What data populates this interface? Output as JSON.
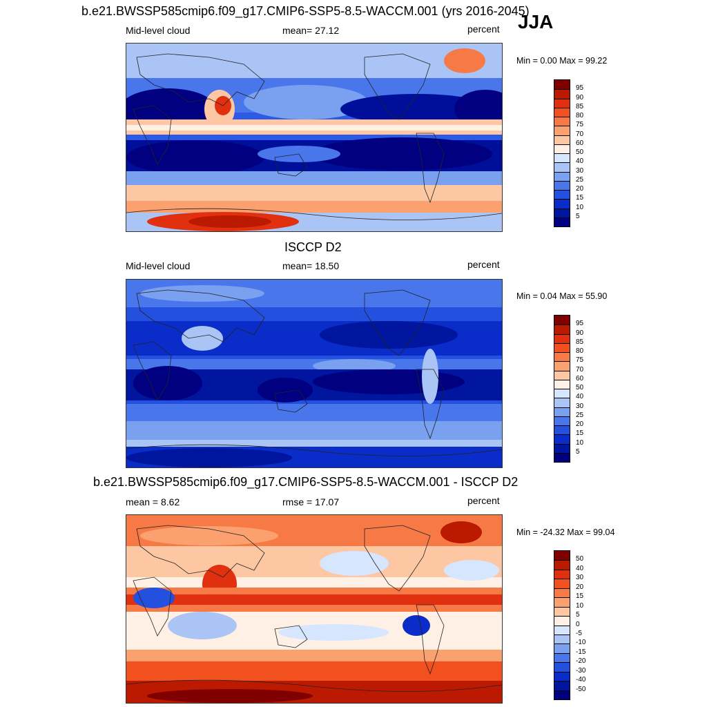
{
  "panel1": {
    "title": "b.e21.BWSSP585cmip6.f09_g17.CMIP6-SSP5-8.5-WACCM.001 (yrs 2016-2045)",
    "season": "JJA",
    "left": "Mid-level cloud",
    "center": "mean=  27.12",
    "right": "percent",
    "minmax": "Min =   0.00 Max =  99.22"
  },
  "panel2": {
    "title": "ISCCP D2",
    "left": "Mid-level cloud",
    "center": "mean=  18.50",
    "right": "percent",
    "minmax": "Min =   0.04 Max =  55.90"
  },
  "panel3": {
    "title": "b.e21.BWSSP585cmip6.f09_g17.CMIP6-SSP5-8.5-WACCM.001 - ISCCP D2",
    "left": "mean =   8.62",
    "center": "rmse =  17.07",
    "right": "percent"
  },
  "panel3_minmax": "Min = -24.32 Max =  99.04",
  "colorbar_abs": {
    "labels": [
      "95",
      "90",
      "85",
      "80",
      "75",
      "70",
      "60",
      "50",
      "40",
      "30",
      "25",
      "20",
      "15",
      "10",
      "5"
    ],
    "colors": [
      "#800000",
      "#bb1a00",
      "#e03010",
      "#f2501e",
      "#f77a46",
      "#fba06f",
      "#fdc7a4",
      "#fff0e6",
      "#d6e6ff",
      "#aac4f6",
      "#7aa0f0",
      "#4a76ec",
      "#2450e0",
      "#0a2cc8",
      "#00169e",
      "#000080"
    ]
  },
  "colorbar_diff": {
    "labels": [
      "50",
      "40",
      "30",
      "20",
      "15",
      "10",
      "5",
      "0",
      "-5",
      "-10",
      "-15",
      "-20",
      "-30",
      "-40",
      "-50"
    ],
    "colors": [
      "#800000",
      "#bb1a00",
      "#e03010",
      "#f2501e",
      "#f77a46",
      "#fba06f",
      "#fdc7a4",
      "#fff0e6",
      "#d6e6ff",
      "#aac4f6",
      "#7aa0f0",
      "#4a76ec",
      "#2450e0",
      "#0a2cc8",
      "#00169e",
      "#000080"
    ]
  }
}
